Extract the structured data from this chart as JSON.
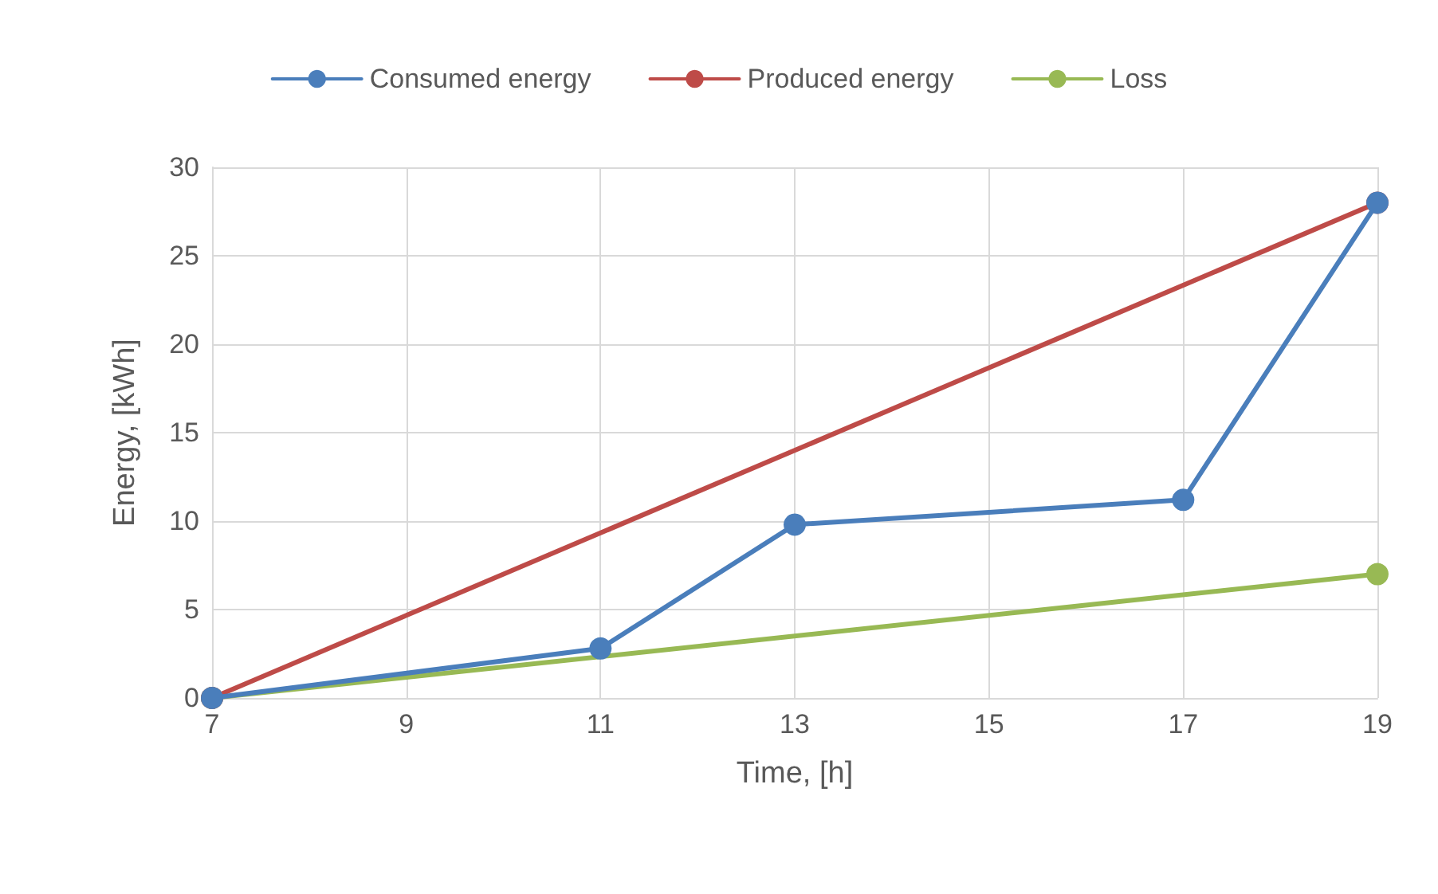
{
  "chart_data": {
    "type": "line",
    "xlabel": "Time, [h]",
    "ylabel": "Energy, [kWh]",
    "series": [
      {
        "name": "Consumed energy",
        "color": "#4a7ebb",
        "x": [
          7,
          11,
          13,
          17,
          19
        ],
        "values": [
          0,
          2.8,
          9.8,
          11.2,
          28
        ]
      },
      {
        "name": "Produced energy",
        "color": "#be4b48",
        "x": [
          7,
          19
        ],
        "values": [
          0,
          28
        ]
      },
      {
        "name": "Loss",
        "color": "#98b954",
        "x": [
          7,
          19
        ],
        "values": [
          0,
          7
        ]
      }
    ],
    "xlim": [
      7,
      19
    ],
    "xticks": [
      7,
      9,
      11,
      13,
      15,
      17,
      19
    ],
    "ylim": [
      0,
      30
    ],
    "yticks": [
      0,
      5,
      10,
      15,
      20,
      25,
      30
    ],
    "grid": true,
    "legend": "top",
    "marker": "circle",
    "line_style": "solid"
  }
}
